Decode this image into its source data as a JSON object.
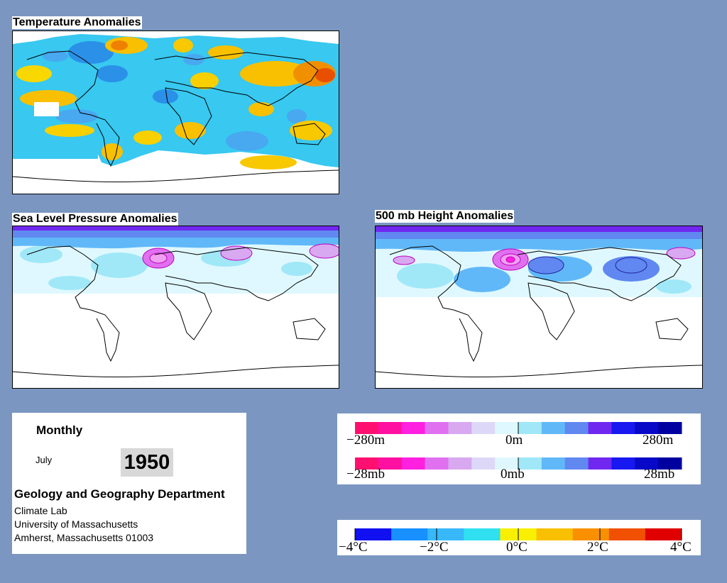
{
  "maps": {
    "temperature": {
      "title": "Temperature Anomalies"
    },
    "pressure": {
      "title": "Sea Level Pressure Anomalies"
    },
    "height": {
      "title": "500 mb Height Anomalies"
    }
  },
  "info": {
    "period": "Monthly",
    "month": "July",
    "year": "1950",
    "department": "Geology and Geography Department",
    "lab": "Climate Lab",
    "university": "University of Massachusetts",
    "address": "Amherst, Massachusetts 01003"
  },
  "scales": {
    "height": {
      "left": "−280m",
      "center": "0m",
      "right": "280m"
    },
    "pressure": {
      "left": "−28mb",
      "center": "0mb",
      "right": "28mb"
    },
    "temperature": {
      "t1": "−4°C",
      "t2": "−2°C",
      "t3": "0°C",
      "t4": "2°C",
      "t5": "4°C"
    }
  },
  "colors": {
    "background": "#7b97c1",
    "anomaly_scale": [
      "#ff1070",
      "#ff10a0",
      "#ff20e0",
      "#e070f0",
      "#d8a8f0",
      "#ddd8f8",
      "#dff8ff",
      "#a0e8f8",
      "#60b8f8",
      "#6088f0",
      "#7028f0",
      "#1818f0",
      "#0808c8",
      "#0000a0"
    ],
    "temperature_scale": [
      "#1010f0",
      "#1890ff",
      "#38b8f8",
      "#30e0f0",
      "#f8f000",
      "#f8c000",
      "#f89000",
      "#f05000",
      "#e00000"
    ]
  }
}
